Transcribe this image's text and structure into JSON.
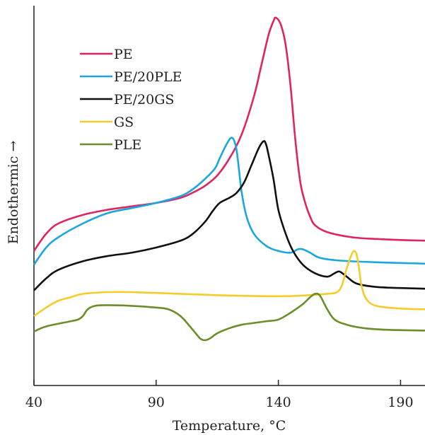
{
  "chart_data": {
    "type": "line",
    "xlabel": "Temperature, °C",
    "ylabel": "Endothermic →",
    "xlim": [
      40,
      200
    ],
    "ylim": [
      0,
      100
    ],
    "xticks": [
      40,
      90,
      140,
      190
    ],
    "grid": false,
    "legend_position": "upper-left",
    "series": [
      {
        "name": "PE",
        "color": "#e0245e",
        "points": [
          [
            40,
            32
          ],
          [
            45,
            37
          ],
          [
            50,
            40
          ],
          [
            60,
            42.5
          ],
          [
            70,
            44
          ],
          [
            80,
            45
          ],
          [
            90,
            46
          ],
          [
            100,
            47.5
          ],
          [
            105,
            49
          ],
          [
            110,
            51
          ],
          [
            115,
            54
          ],
          [
            120,
            59
          ],
          [
            125,
            66
          ],
          [
            130,
            77
          ],
          [
            133,
            86
          ],
          [
            136,
            95
          ],
          [
            138,
            99
          ],
          [
            139,
            100
          ],
          [
            141,
            98
          ],
          [
            143,
            92
          ],
          [
            145,
            80
          ],
          [
            147,
            64
          ],
          [
            149,
            52
          ],
          [
            151,
            46
          ],
          [
            153,
            42
          ],
          [
            155,
            39.5
          ],
          [
            160,
            37.5
          ],
          [
            170,
            36
          ],
          [
            180,
            35.5
          ],
          [
            190,
            35.2
          ],
          [
            200,
            35
          ]
        ]
      },
      {
        "name": "PE/20PLE",
        "color": "#1aa7e0",
        "points": [
          [
            40,
            28
          ],
          [
            45,
            33
          ],
          [
            50,
            36
          ],
          [
            60,
            40
          ],
          [
            70,
            43
          ],
          [
            80,
            44.5
          ],
          [
            90,
            46
          ],
          [
            100,
            48
          ],
          [
            105,
            50
          ],
          [
            110,
            53
          ],
          [
            114,
            56
          ],
          [
            116,
            59
          ],
          [
            118,
            62
          ],
          [
            120,
            64.5
          ],
          [
            121,
            65
          ],
          [
            122,
            64
          ],
          [
            123,
            61
          ],
          [
            124,
            55
          ],
          [
            125,
            49
          ],
          [
            127,
            42
          ],
          [
            130,
            37
          ],
          [
            135,
            33.5
          ],
          [
            140,
            32
          ],
          [
            145,
            31.5
          ],
          [
            148,
            32.5
          ],
          [
            150,
            32.5
          ],
          [
            153,
            31.5
          ],
          [
            157,
            30
          ],
          [
            165,
            29.2
          ],
          [
            180,
            28.7
          ],
          [
            200,
            28.3
          ]
        ]
      },
      {
        "name": "PE/20GS",
        "color": "#111111",
        "points": [
          [
            40,
            20.5
          ],
          [
            45,
            24
          ],
          [
            50,
            26.5
          ],
          [
            60,
            29
          ],
          [
            70,
            30.5
          ],
          [
            80,
            31.5
          ],
          [
            90,
            33
          ],
          [
            100,
            35
          ],
          [
            105,
            37
          ],
          [
            110,
            40.5
          ],
          [
            113,
            43.5
          ],
          [
            116,
            46
          ],
          [
            120,
            47.5
          ],
          [
            123,
            49
          ],
          [
            126,
            52
          ],
          [
            129,
            57
          ],
          [
            132,
            62
          ],
          [
            134,
            64
          ],
          [
            135,
            63
          ],
          [
            136,
            60
          ],
          [
            138,
            53
          ],
          [
            140,
            44
          ],
          [
            143,
            37
          ],
          [
            146,
            32
          ],
          [
            150,
            28
          ],
          [
            155,
            25.5
          ],
          [
            160,
            24.5
          ],
          [
            163,
            25.5
          ],
          [
            165,
            26
          ],
          [
            168,
            24.5
          ],
          [
            172,
            22.5
          ],
          [
            180,
            21.5
          ],
          [
            190,
            21.2
          ],
          [
            200,
            21
          ]
        ]
      },
      {
        "name": "GS",
        "color": "#f5cc2a",
        "points": [
          [
            40,
            13
          ],
          [
            45,
            15.5
          ],
          [
            50,
            17.5
          ],
          [
            55,
            18.5
          ],
          [
            60,
            19.5
          ],
          [
            70,
            20
          ],
          [
            80,
            20
          ],
          [
            100,
            19.5
          ],
          [
            120,
            19
          ],
          [
            140,
            18.8
          ],
          [
            150,
            19
          ],
          [
            160,
            19.5
          ],
          [
            164,
            20
          ],
          [
            166,
            22
          ],
          [
            168,
            27
          ],
          [
            170,
            31
          ],
          [
            171,
            32
          ],
          [
            172,
            31
          ],
          [
            173,
            27
          ],
          [
            174,
            22
          ],
          [
            176,
            18
          ],
          [
            180,
            16
          ],
          [
            190,
            15.2
          ],
          [
            200,
            15
          ]
        ]
      },
      {
        "name": "PLE",
        "color": "#6b8e2a",
        "points": [
          [
            40,
            8.5
          ],
          [
            45,
            10
          ],
          [
            55,
            11.5
          ],
          [
            58,
            12
          ],
          [
            60,
            13
          ],
          [
            62,
            15
          ],
          [
            65,
            16
          ],
          [
            70,
            16.2
          ],
          [
            80,
            16
          ],
          [
            90,
            15.5
          ],
          [
            95,
            15
          ],
          [
            100,
            13
          ],
          [
            105,
            9
          ],
          [
            108,
            6.5
          ],
          [
            110,
            6
          ],
          [
            112,
            6.5
          ],
          [
            115,
            8
          ],
          [
            120,
            9.5
          ],
          [
            125,
            10.5
          ],
          [
            130,
            11
          ],
          [
            135,
            11.5
          ],
          [
            140,
            12
          ],
          [
            145,
            14
          ],
          [
            150,
            16.5
          ],
          [
            153,
            18.5
          ],
          [
            155,
            19.5
          ],
          [
            157,
            19
          ],
          [
            160,
            15
          ],
          [
            163,
            12
          ],
          [
            168,
            10.5
          ],
          [
            175,
            9.5
          ],
          [
            185,
            9
          ],
          [
            200,
            8.8
          ]
        ]
      }
    ]
  }
}
